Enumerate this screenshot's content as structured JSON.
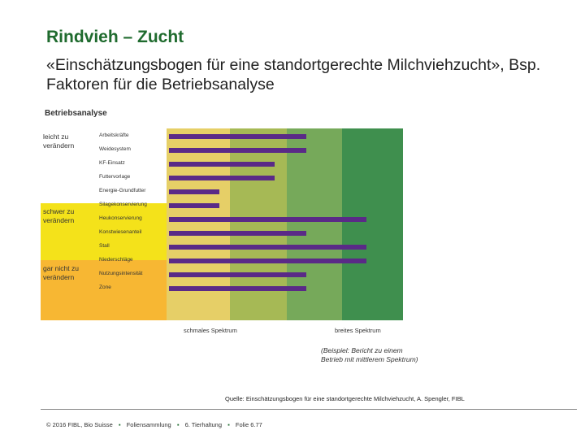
{
  "slide": {
    "title": "Rindvieh – Zucht",
    "subtitle": "«Einschätzungsbogen für eine standortgerechte Milchviehzucht», Bsp. Faktoren für die Betriebsanalyse"
  },
  "figure": {
    "heading": "Betriebsanalyse",
    "bands": [
      {
        "label": "leicht zu verändern",
        "color": "#ffffff"
      },
      {
        "label": "schwer zu verändern",
        "color": "#f4e21a"
      },
      {
        "label": "gar nicht zu verändern",
        "color": "#f7b733"
      }
    ],
    "factors": [
      {
        "label": "Arbeitskräfte",
        "score": 0.6
      },
      {
        "label": "Weidesystem",
        "score": 0.6
      },
      {
        "label": "KF-Einsatz",
        "score": 0.46
      },
      {
        "label": "Futtervorlage",
        "score": 0.46
      },
      {
        "label": "Energie-Grundfutter",
        "score": 0.22
      },
      {
        "label": "Silagekonservierung",
        "score": 0.22
      },
      {
        "label": "Heukonservierung",
        "score": 0.86
      },
      {
        "label": "Konstwiesenanteil",
        "score": 0.6
      },
      {
        "label": "Stall",
        "score": 0.86
      },
      {
        "label": "Niederschläge",
        "score": 0.86
      },
      {
        "label": "Nutzungsintensität",
        "score": 0.6
      },
      {
        "label": "Zone",
        "score": 0.6
      }
    ],
    "column_colors": [
      "#e6cf67",
      "#a6b955",
      "#76a95a",
      "#3f8f4e"
    ],
    "axis_left": "schmales Spektrum",
    "axis_right": "breites Spektrum",
    "note": "(Beispiel: Bericht zu einem Betrieb mit mittlerem Spektrum)"
  },
  "source": "Quelle: Einschätzungsbogen für eine standortgerechte Milchviehzucht, A. Spengler, FIBL",
  "footer": {
    "copyright": "© 2016 FIBL, Bio Suisse",
    "separator": "▪",
    "collection": "Foliensammlung",
    "chapter": "6. Tierhaltung",
    "page": "Folie 6.77"
  }
}
